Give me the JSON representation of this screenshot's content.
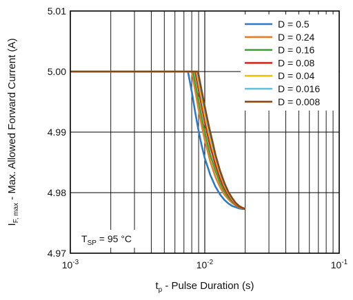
{
  "chart_data": {
    "type": "line",
    "x_scale": "log",
    "xlim": [
      0.001,
      0.1
    ],
    "ylim": [
      4.97,
      5.01
    ],
    "grid": true,
    "legend_placement": "top-right",
    "xlabel": {
      "main": "t",
      "sub": "p",
      "rest": " - Pulse Duration (s)"
    },
    "ylabel": {
      "main": "I",
      "sub": "F, max",
      "rest": " - Max. Allowed Forward Current (A)"
    },
    "x_ticks": [
      {
        "value": 0.001,
        "base": "10",
        "exp": "-3"
      },
      {
        "value": 0.01,
        "base": "10",
        "exp": "-2"
      },
      {
        "value": 0.1,
        "base": "10",
        "exp": "-1"
      }
    ],
    "y_ticks": [
      {
        "value": 4.97,
        "label": "4.97"
      },
      {
        "value": 4.98,
        "label": "4.98"
      },
      {
        "value": 4.99,
        "label": "4.99"
      },
      {
        "value": 5.0,
        "label": "5.00"
      },
      {
        "value": 5.01,
        "label": "5.01"
      }
    ],
    "annotation": {
      "main": "T",
      "sub": "SP",
      "rest": " = 95 °C"
    },
    "series": [
      {
        "name": "D = 0.5",
        "color": "#2f79c4",
        "x": [
          0.001,
          0.0075,
          0.008,
          0.0085,
          0.009,
          0.0095,
          0.01,
          0.011,
          0.012,
          0.013,
          0.014,
          0.015,
          0.016,
          0.017,
          0.018,
          0.019,
          0.02
        ],
        "y": [
          5.0,
          5.0,
          4.9967,
          4.9932,
          4.9902,
          4.9877,
          4.9857,
          4.9829,
          4.981,
          4.9797,
          4.9788,
          4.9782,
          4.9778,
          4.9776,
          4.9774,
          4.9773,
          4.9773
        ]
      },
      {
        "name": "D = 0.24",
        "color": "#e87d2d",
        "x": [
          0.001,
          0.008,
          0.0085,
          0.009,
          0.0095,
          0.01,
          0.011,
          0.012,
          0.013,
          0.014,
          0.015,
          0.016,
          0.017,
          0.018,
          0.019,
          0.02
        ],
        "y": [
          5.0,
          5.0,
          4.9968,
          4.9937,
          4.991,
          4.9887,
          4.9851,
          4.9826,
          4.9809,
          4.9797,
          4.9789,
          4.9783,
          4.9779,
          4.9776,
          4.9774,
          4.9773
        ]
      },
      {
        "name": "D = 0.16",
        "color": "#3aaa35",
        "x": [
          0.001,
          0.0082,
          0.0087,
          0.0092,
          0.0097,
          0.0102,
          0.011,
          0.012,
          0.013,
          0.014,
          0.015,
          0.016,
          0.017,
          0.018,
          0.019,
          0.02
        ],
        "y": [
          5.0,
          5.0,
          4.9969,
          4.994,
          4.9914,
          4.9892,
          4.9862,
          4.9836,
          4.9816,
          4.9802,
          4.9792,
          4.9785,
          4.978,
          4.9777,
          4.9775,
          4.9773
        ]
      },
      {
        "name": "D = 0.08",
        "color": "#d42a20",
        "x": [
          0.001,
          0.0085,
          0.009,
          0.0095,
          0.01,
          0.0105,
          0.011,
          0.012,
          0.013,
          0.014,
          0.015,
          0.016,
          0.017,
          0.018,
          0.019,
          0.02
        ],
        "y": [
          5.0,
          5.0,
          4.997,
          4.9942,
          4.9917,
          4.9895,
          4.9876,
          4.9846,
          4.9823,
          4.9807,
          4.9795,
          4.9787,
          4.9781,
          4.9777,
          4.9775,
          4.9773
        ]
      },
      {
        "name": "D = 0.04",
        "color": "#f2c200",
        "x": [
          0.001,
          0.0087,
          0.0092,
          0.0097,
          0.0102,
          0.0107,
          0.0112,
          0.012,
          0.013,
          0.014,
          0.015,
          0.016,
          0.017,
          0.018,
          0.019,
          0.02
        ],
        "y": [
          5.0,
          5.0,
          4.9971,
          4.9944,
          4.992,
          4.9899,
          4.9881,
          4.9856,
          4.9831,
          4.9812,
          4.9799,
          4.9789,
          4.9782,
          4.9778,
          4.9775,
          4.9773
        ]
      },
      {
        "name": "D = 0.016",
        "color": "#5bc0de",
        "x": [
          0.001,
          0.0088,
          0.0093,
          0.0098,
          0.0103,
          0.0108,
          0.0113,
          0.012,
          0.013,
          0.014,
          0.015,
          0.016,
          0.017,
          0.018,
          0.019,
          0.02
        ],
        "y": [
          5.0,
          5.0,
          4.9972,
          4.9946,
          4.9922,
          4.9901,
          4.9883,
          4.986,
          4.9834,
          4.9814,
          4.98,
          4.979,
          4.9783,
          4.9778,
          4.9775,
          4.9773
        ]
      },
      {
        "name": "D = 0.008",
        "color": "#8b4513",
        "x": [
          0.001,
          0.0089,
          0.0094,
          0.0099,
          0.0104,
          0.0109,
          0.0114,
          0.012,
          0.013,
          0.014,
          0.015,
          0.016,
          0.017,
          0.018,
          0.019,
          0.02
        ],
        "y": [
          5.0,
          5.0,
          4.9973,
          4.9947,
          4.9924,
          4.9903,
          4.9885,
          4.9863,
          4.9836,
          4.9816,
          4.9801,
          4.9791,
          4.9783,
          4.9778,
          4.9775,
          4.9773
        ]
      }
    ]
  }
}
